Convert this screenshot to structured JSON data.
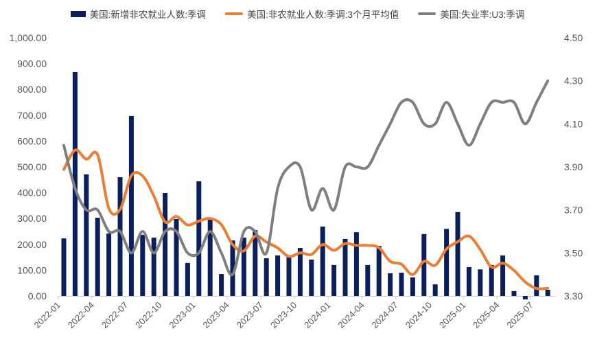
{
  "chart_data": {
    "type": "bar+line",
    "title": "",
    "legend_position": "top",
    "x": [
      "2022-01",
      "2022-02",
      "2022-03",
      "2022-04",
      "2022-05",
      "2022-06",
      "2022-07",
      "2022-08",
      "2022-09",
      "2022-10",
      "2022-11",
      "2022-12",
      "2023-01",
      "2023-02",
      "2023-03",
      "2023-04",
      "2023-05",
      "2023-06",
      "2023-07",
      "2023-08",
      "2023-09",
      "2023-10",
      "2023-11",
      "2023-12",
      "2024-01",
      "2024-02",
      "2024-03",
      "2024-04",
      "2024-05",
      "2024-06",
      "2024-07",
      "2024-08",
      "2024-09",
      "2024-10",
      "2024-11",
      "2024-12",
      "2025-01",
      "2025-02",
      "2025-03",
      "2025-04",
      "2025-05",
      "2025-06",
      "2025-07",
      "2025-08"
    ],
    "x_tick_labels": [
      "2022-01",
      "2022-04",
      "2022-07",
      "2022-10",
      "2023-01",
      "2023-04",
      "2023-07",
      "2023-10",
      "2024-01",
      "2024-04",
      "2024-07",
      "2024-10",
      "2025-01",
      "2025-04",
      "2025-07"
    ],
    "left_axis": {
      "ylim": [
        0,
        1000
      ],
      "ticks": [
        "0.00",
        "100.00",
        "200.00",
        "300.00",
        "400.00",
        "500.00",
        "600.00",
        "700.00",
        "800.00",
        "900.00",
        "1,000.00"
      ]
    },
    "right_axis": {
      "ylim": [
        3.3,
        4.5
      ],
      "ticks": [
        "3.30",
        "3.50",
        "3.70",
        "3.90",
        "4.10",
        "4.30",
        "4.50"
      ]
    },
    "series": [
      {
        "name": "美国:新增非农就业人数:季调",
        "type": "bar",
        "axis": "left",
        "color": "#0b1f5e",
        "values": [
          223,
          867,
          471,
          303,
          242,
          460,
          697,
          237,
          226,
          399,
          298,
          128,
          444,
          298,
          85,
          215,
          226,
          255,
          146,
          157,
          157,
          186,
          141,
          269,
          120,
          221,
          247,
          120,
          194,
          88,
          90,
          72,
          240,
          45,
          260,
          325,
          112,
          103,
          120,
          157,
          19,
          -13,
          80,
          24
        ]
      },
      {
        "name": "美国:非农就业人数:季调:3个月平均值",
        "type": "line",
        "axis": "left",
        "color": "#ed7d31",
        "values": [
          490,
          565,
          530,
          547,
          339,
          335,
          466,
          465,
          387,
          287,
          308,
          275,
          290,
          300,
          276,
          199,
          175,
          232,
          209,
          186,
          153,
          167,
          161,
          199,
          177,
          203,
          196,
          196,
          187,
          134,
          123,
          83,
          134,
          119,
          182,
          210,
          232,
          180,
          112,
          127,
          99,
          54,
          29,
          30
        ]
      },
      {
        "name": "美国:失业率:U3:季调",
        "type": "line",
        "axis": "right",
        "color": "#7f7f7f",
        "values": [
          4.0,
          3.8,
          3.7,
          3.7,
          3.6,
          3.6,
          3.5,
          3.6,
          3.5,
          3.6,
          3.6,
          3.5,
          3.5,
          3.6,
          3.5,
          3.4,
          3.6,
          3.6,
          3.5,
          3.8,
          3.9,
          3.9,
          3.7,
          3.8,
          3.7,
          3.9,
          3.9,
          3.9,
          4.0,
          4.1,
          4.2,
          4.2,
          4.1,
          4.1,
          4.2,
          4.1,
          4.0,
          4.1,
          4.2,
          4.2,
          4.2,
          4.1,
          4.2,
          4.3
        ]
      }
    ]
  }
}
